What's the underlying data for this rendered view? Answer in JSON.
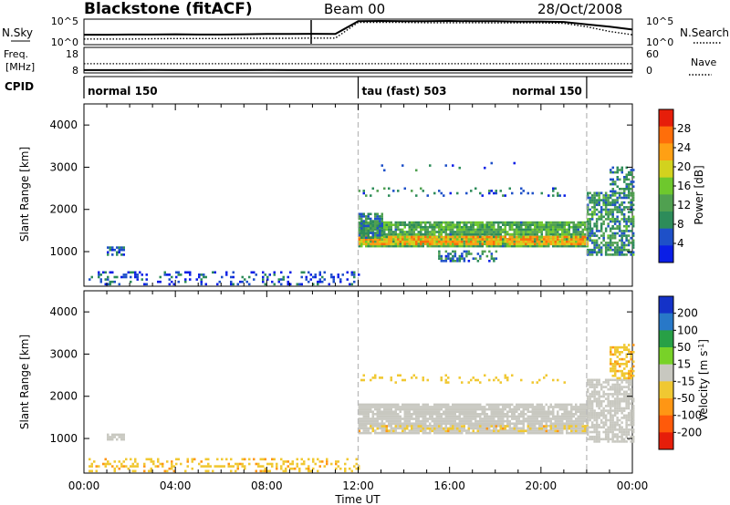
{
  "header": {
    "title": "Blackstone (fitACF)",
    "beam": "Beam 00",
    "date": "28/Oct/2008"
  },
  "chart_data": [
    {
      "type": "line",
      "panel": "noise",
      "left_label": "N.Sky",
      "right_label": "N.Search",
      "left_ticks": [
        "10^5",
        "10^0"
      ],
      "right_ticks": [
        "10^5",
        "10^0"
      ],
      "series": [
        {
          "values": [
            [
              0,
              0.38
            ],
            [
              1,
              0.38
            ],
            [
              2,
              0.39
            ],
            [
              3,
              0.39
            ],
            [
              4,
              0.4
            ],
            [
              5,
              0.39
            ],
            [
              6,
              0.39
            ],
            [
              7,
              0.4
            ],
            [
              8,
              0.41
            ],
            [
              9,
              0.41
            ],
            [
              10,
              0.42
            ],
            [
              11,
              0.41
            ],
            [
              12,
              0.95
            ],
            [
              13,
              0.96
            ],
            [
              14,
              0.95
            ],
            [
              15,
              0.95
            ],
            [
              16,
              0.96
            ],
            [
              17,
              0.95
            ],
            [
              18,
              0.95
            ],
            [
              19,
              0.94
            ],
            [
              20,
              0.94
            ],
            [
              21,
              0.92
            ],
            [
              22,
              0.82
            ],
            [
              23,
              0.72
            ],
            [
              24,
              0.6
            ]
          ]
        },
        {
          "values": [
            [
              0,
              0.2
            ],
            [
              1,
              0.2
            ],
            [
              2,
              0.2
            ],
            [
              3,
              0.21
            ],
            [
              4,
              0.22
            ],
            [
              5,
              0.22
            ],
            [
              6,
              0.22
            ],
            [
              7,
              0.23
            ],
            [
              8,
              0.23
            ],
            [
              9,
              0.23
            ],
            [
              10,
              0.24
            ],
            [
              11,
              0.24
            ],
            [
              12,
              0.9
            ],
            [
              13,
              0.9
            ],
            [
              14,
              0.9
            ],
            [
              15,
              0.89
            ],
            [
              16,
              0.89
            ],
            [
              17,
              0.89
            ],
            [
              18,
              0.88
            ],
            [
              19,
              0.88
            ],
            [
              20,
              0.88
            ],
            [
              21,
              0.86
            ],
            [
              22,
              0.72
            ],
            [
              23,
              0.52
            ],
            [
              24,
              0.38
            ]
          ]
        }
      ]
    },
    {
      "type": "line",
      "panel": "frequency",
      "left_label": "Freq.",
      "left_unit": "[MHz]",
      "right_label": "Nave",
      "left_ticks": [
        "18",
        "8"
      ],
      "right_ticks": [
        "60",
        "0"
      ],
      "series": [
        {
          "values": [
            [
              0,
              0.08
            ],
            [
              1,
              0.08
            ],
            [
              2,
              0.08
            ],
            [
              3,
              0.09
            ],
            [
              4,
              0.08
            ],
            [
              5,
              0.08
            ],
            [
              6,
              0.08
            ],
            [
              7,
              0.08
            ],
            [
              8,
              0.09
            ],
            [
              9,
              0.08
            ],
            [
              10,
              0.08
            ],
            [
              11,
              0.08
            ],
            [
              12,
              0.08
            ],
            [
              13,
              0.08
            ],
            [
              14,
              0.08
            ],
            [
              15,
              0.08
            ],
            [
              16,
              0.08
            ],
            [
              17,
              0.08
            ],
            [
              18,
              0.08
            ],
            [
              19,
              0.08
            ],
            [
              20,
              0.08
            ],
            [
              21,
              0.08
            ],
            [
              22,
              0.08
            ],
            [
              23,
              0.08
            ],
            [
              24,
              0.08
            ]
          ]
        },
        {
          "values": [
            [
              0,
              0.35
            ],
            [
              2,
              0.35
            ],
            [
              4,
              0.35
            ],
            [
              6,
              0.35
            ],
            [
              8,
              0.35
            ],
            [
              10,
              0.35
            ],
            [
              12,
              0.35
            ],
            [
              14,
              0.35
            ],
            [
              16,
              0.35
            ],
            [
              18,
              0.35
            ],
            [
              20,
              0.35
            ],
            [
              22,
              0.35
            ],
            [
              24,
              0.35
            ]
          ]
        }
      ]
    },
    {
      "type": "table",
      "panel": "cpid",
      "label": "CPID",
      "segments": [
        {
          "start": 0,
          "end": 12,
          "label": "normal 150",
          "align": "left"
        },
        {
          "start": 12,
          "end": 22,
          "label": "tau (fast) 503",
          "align": "left"
        },
        {
          "start": 12,
          "end": 22,
          "label": "normal 150",
          "align": "right"
        }
      ],
      "boundaries": [
        0,
        12,
        22
      ]
    },
    {
      "type": "heatmap",
      "panel": "power",
      "ylabel": "Slant Range [km]",
      "ylim": [
        180,
        4500
      ],
      "yticks": [
        1000,
        2000,
        3000,
        4000
      ],
      "xlim": [
        0,
        24
      ],
      "colorbar": {
        "label": "Power [dB]",
        "ticks": [
          4,
          8,
          12,
          16,
          20,
          24,
          28
        ],
        "min": 0,
        "max": 32,
        "colors": [
          "#0a1ee6",
          "#1e50c8",
          "#2d8c5a",
          "#50a050",
          "#6ec82d",
          "#d2d21e",
          "#ffa014",
          "#ff6e0a",
          "#e61e0a"
        ]
      },
      "regions": [
        {
          "x": [
            1.0,
            1.7
          ],
          "y": [
            900,
            1100
          ],
          "value": 6,
          "density": 0.7
        },
        {
          "x": [
            0.2,
            12.0
          ],
          "y": [
            200,
            500
          ],
          "value": 5,
          "density": 0.25
        },
        {
          "x": [
            12.0,
            22.0
          ],
          "y": [
            1100,
            1700
          ],
          "value": 12,
          "density": 0.9
        },
        {
          "x": [
            12.0,
            22.0
          ],
          "y": [
            1150,
            1350
          ],
          "value": 22,
          "density": 0.9
        },
        {
          "x": [
            12.0,
            13.0
          ],
          "y": [
            1300,
            1900
          ],
          "value": 9,
          "density": 0.8
        },
        {
          "x": [
            15.5,
            18.0
          ],
          "y": [
            750,
            1000
          ],
          "value": 8,
          "density": 0.5
        },
        {
          "x": [
            12.0,
            21.0
          ],
          "y": [
            2300,
            2500
          ],
          "value": 7,
          "density": 0.15
        },
        {
          "x": [
            13.0,
            19.0
          ],
          "y": [
            2900,
            3100
          ],
          "value": 7,
          "density": 0.06
        },
        {
          "x": [
            22.0,
            24.0
          ],
          "y": [
            900,
            2400
          ],
          "value": 10,
          "density": 0.7
        },
        {
          "x": [
            23.0,
            24.0
          ],
          "y": [
            2400,
            3000
          ],
          "value": 9,
          "density": 0.5
        }
      ]
    },
    {
      "type": "heatmap",
      "panel": "velocity",
      "ylabel": "Slant Range [km]",
      "ylim": [
        180,
        4500
      ],
      "yticks": [
        1000,
        2000,
        3000,
        4000
      ],
      "xlim": [
        0,
        24
      ],
      "xticks": [
        "00:00",
        "04:00",
        "08:00",
        "12:00",
        "16:00",
        "20:00",
        "00:00"
      ],
      "xlabel": "Time UT",
      "colorbar": {
        "label": "Velocity [m s",
        "label_sup": "-1",
        "label_end": "]",
        "ticks": [
          "200",
          "100",
          "50",
          "15",
          "-15",
          "-50",
          "-100",
          "-200"
        ],
        "colors": [
          "#1432c8",
          "#2878c8",
          "#28a046",
          "#78d228",
          "#c8c8c0",
          "#f0c832",
          "#ff9614",
          "#ff5a0a",
          "#e61e0a"
        ]
      },
      "regions": [
        {
          "x": [
            1.0,
            1.7
          ],
          "y": [
            950,
            1100
          ],
          "value": 0,
          "density": 0.7
        },
        {
          "x": [
            0.2,
            12.0
          ],
          "y": [
            200,
            500
          ],
          "value": -40,
          "density": 0.3
        },
        {
          "x": [
            12.0,
            22.0
          ],
          "y": [
            1100,
            1800
          ],
          "value": 0,
          "density": 0.9
        },
        {
          "x": [
            12.0,
            22.0
          ],
          "y": [
            1150,
            1300
          ],
          "value": -40,
          "density": 0.3
        },
        {
          "x": [
            12.0,
            21.0
          ],
          "y": [
            2300,
            2500
          ],
          "value": -30,
          "density": 0.15
        },
        {
          "x": [
            22.0,
            24.0
          ],
          "y": [
            900,
            2400
          ],
          "value": 0,
          "density": 0.7
        },
        {
          "x": [
            23.0,
            24.0
          ],
          "y": [
            2400,
            3200
          ],
          "value": -40,
          "density": 0.5
        }
      ]
    }
  ]
}
